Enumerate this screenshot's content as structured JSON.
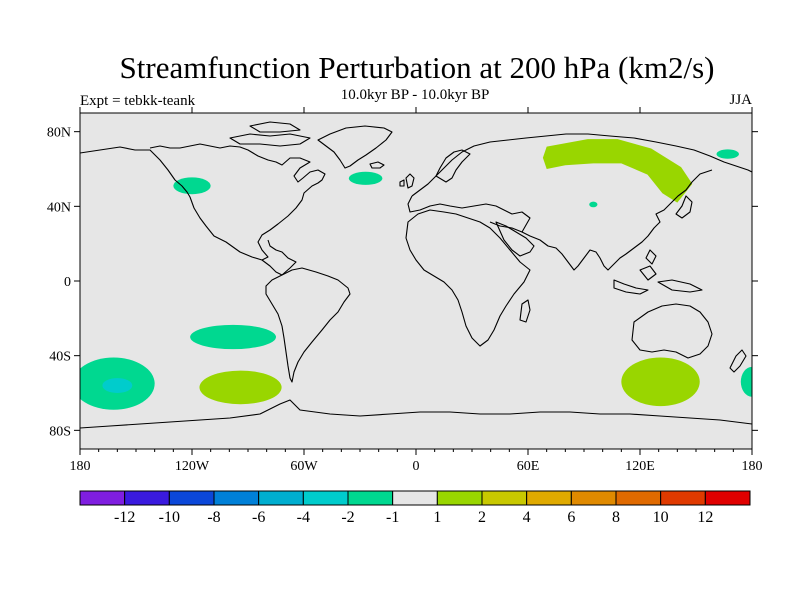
{
  "title": "Streamfunction Perturbation at 200 hPa (km2/s)",
  "subtitle": "10.0kyr BP - 10.0kyr BP",
  "left_label": "Expt = tebkk-teank",
  "right_label": "JJA",
  "colors": {
    "ocean_land_bg": "#e6e6e6",
    "coastline": "#000000",
    "contour_neg": "#00d890",
    "contour_neg_strong": "#00cccc",
    "contour_pos": "#99d600"
  },
  "map": {
    "lon_range": [
      -180,
      180
    ],
    "lat_range": [
      -90,
      90
    ],
    "lon_ticks": [
      {
        "value": -180,
        "label": "180"
      },
      {
        "value": -120,
        "label": "120W"
      },
      {
        "value": -60,
        "label": "60W"
      },
      {
        "value": 0,
        "label": "0"
      },
      {
        "value": 60,
        "label": "60E"
      },
      {
        "value": 120,
        "label": "120E"
      },
      {
        "value": 180,
        "label": "180"
      }
    ],
    "lat_ticks": [
      {
        "value": 80,
        "label": "80N"
      },
      {
        "value": 40,
        "label": "40N"
      },
      {
        "value": 0,
        "label": "0"
      },
      {
        "value": -40,
        "label": "40S"
      },
      {
        "value": -80,
        "label": "80S"
      }
    ],
    "anomalies": [
      {
        "id": "n-pacific-east",
        "sign": "negative",
        "value": -2,
        "lon": -120,
        "lat": 51,
        "rx_deg": 10,
        "ry_deg": 4.5
      },
      {
        "id": "n-atlantic",
        "sign": "negative",
        "value": -2,
        "lon": -27,
        "lat": 55,
        "rx_deg": 9,
        "ry_deg": 3.5
      },
      {
        "id": "central-asia",
        "sign": "negative",
        "value": -2,
        "lon": 95,
        "lat": 41,
        "rx_deg": 2.2,
        "ry_deg": 1.5
      },
      {
        "id": "bering",
        "sign": "negative",
        "value": -2,
        "lon": 167,
        "lat": 68,
        "rx_deg": 6,
        "ry_deg": 2.5
      },
      {
        "id": "se-pacific",
        "sign": "negative",
        "value": -2,
        "lon": -98,
        "lat": -30,
        "rx_deg": 23,
        "ry_deg": 6.5
      },
      {
        "id": "s-pacific-west",
        "sign": "negative",
        "value": -2,
        "lon": -162,
        "lat": -55,
        "rx_deg": 22,
        "ry_deg": 14
      },
      {
        "id": "s-pacific-west-core",
        "sign": "negative",
        "value": -4,
        "lon": -160,
        "lat": -56,
        "rx_deg": 8,
        "ry_deg": 4
      },
      {
        "id": "s-pacific-east-wrap",
        "sign": "negative",
        "value": -2,
        "lon": 180,
        "lat": -54,
        "rx_deg": 6,
        "ry_deg": 8
      },
      {
        "id": "drake",
        "sign": "positive",
        "value": 1,
        "lon": -94,
        "lat": -57,
        "rx_deg": 22,
        "ry_deg": 9
      },
      {
        "id": "s-indian",
        "sign": "positive",
        "value": 1,
        "lon": 131,
        "lat": -54,
        "rx_deg": 21,
        "ry_deg": 13
      }
    ],
    "siberia_band": {
      "sign": "positive",
      "value": 1
    }
  },
  "colorbar": {
    "colors": [
      "#7f1ee0",
      "#3a1adf",
      "#0b47d9",
      "#0080d8",
      "#00aed0",
      "#00cccc",
      "#00d890",
      "#e6e6e6",
      "#99d600",
      "#c8c800",
      "#e0aa00",
      "#e08a00",
      "#e06a00",
      "#e03a00",
      "#e00000"
    ],
    "levels": [
      "-12",
      "-10",
      "-8",
      "-6",
      "-4",
      "-2",
      "-1",
      "1",
      "2",
      "4",
      "6",
      "8",
      "10",
      "12"
    ]
  }
}
